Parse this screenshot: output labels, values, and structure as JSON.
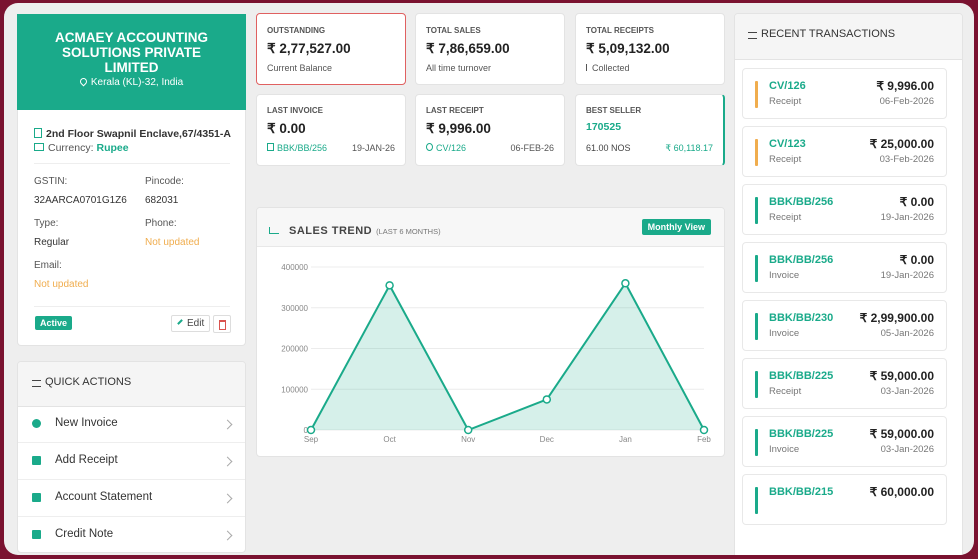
{
  "company": {
    "name": "ACMAEY ACCOUNTING SOLUTIONS PRIVATE LIMITED",
    "location": "Kerala (KL)-32, India",
    "address": "2nd Floor Swapnil Enclave,67/4351-A",
    "currency_label": "Currency:",
    "currency": "Rupee",
    "fields": [
      {
        "label": "GSTIN:",
        "value": "32AARCA0701G1Z6"
      },
      {
        "label": "Pincode:",
        "value": "682031"
      },
      {
        "label": "Type:",
        "value": "Regular"
      },
      {
        "label": "Phone:",
        "value": "Not updated"
      },
      {
        "label": "Email:",
        "value": "Not updated"
      }
    ],
    "status": "Active",
    "edit": "Edit"
  },
  "quick_actions": {
    "title": "QUICK ACTIONS",
    "items": [
      "New Invoice",
      "Add Receipt",
      "Account Statement",
      "Credit Note"
    ]
  },
  "stats": [
    {
      "label": "OUTSTANDING",
      "value": "₹ 2,77,527.00",
      "note": "Current Balance"
    },
    {
      "label": "TOTAL SALES",
      "value": "₹ 7,86,659.00",
      "note": "All time turnover"
    },
    {
      "label": "TOTAL RECEIPTS",
      "value": "₹ 5,09,132.00",
      "note": "Collected"
    },
    {
      "label": "LAST INVOICE",
      "value": "₹ 0.00",
      "ref": "BBK/BB/256",
      "date": "19-JAN-26"
    },
    {
      "label": "LAST RECEIPT",
      "value": "₹ 9,996.00",
      "ref": "CV/126",
      "date": "06-FEB-26"
    },
    {
      "label": "BEST SELLER",
      "value": "170525",
      "ref": "61.00 NOS",
      "date": "₹ 60,118.17"
    }
  ],
  "chart_data": {
    "type": "line",
    "title": "SALES TREND",
    "subtitle": "(LAST 6 MONTHS)",
    "button": "Monthly View",
    "categories": [
      "Sep",
      "Oct",
      "Nov",
      "Dec",
      "Jan",
      "Feb"
    ],
    "values": [
      0,
      355000,
      0,
      75000,
      360000,
      0
    ],
    "color": "#1aaa8a",
    "area": true,
    "ylim": [
      0,
      400000
    ],
    "yticks": [
      0,
      100000,
      200000,
      300000,
      400000
    ],
    "grid": true
  },
  "transactions": {
    "title": "RECENT TRANSACTIONS",
    "items": [
      {
        "ref": "CV/126",
        "type": "Receipt",
        "amount": "₹ 9,996.00",
        "date": "06-Feb-2026",
        "color": "#f0ad4e"
      },
      {
        "ref": "CV/123",
        "type": "Receipt",
        "amount": "₹ 25,000.00",
        "date": "03-Feb-2026",
        "color": "#f0ad4e"
      },
      {
        "ref": "BBK/BB/256",
        "type": "Receipt",
        "amount": "₹ 0.00",
        "date": "19-Jan-2026",
        "color": "#1aaa8a"
      },
      {
        "ref": "BBK/BB/256",
        "type": "Invoice",
        "amount": "₹ 0.00",
        "date": "19-Jan-2026",
        "color": "#1aaa8a"
      },
      {
        "ref": "BBK/BB/230",
        "type": "Invoice",
        "amount": "₹ 2,99,900.00",
        "date": "05-Jan-2026",
        "color": "#1aaa8a"
      },
      {
        "ref": "BBK/BB/225",
        "type": "Receipt",
        "amount": "₹ 59,000.00",
        "date": "03-Jan-2026",
        "color": "#1aaa8a"
      },
      {
        "ref": "BBK/BB/225",
        "type": "Invoice",
        "amount": "₹ 59,000.00",
        "date": "03-Jan-2026",
        "color": "#1aaa8a"
      },
      {
        "ref": "BBK/BB/215",
        "amount": "₹ 60,000.00",
        "color": "#1aaa8a"
      }
    ]
  }
}
